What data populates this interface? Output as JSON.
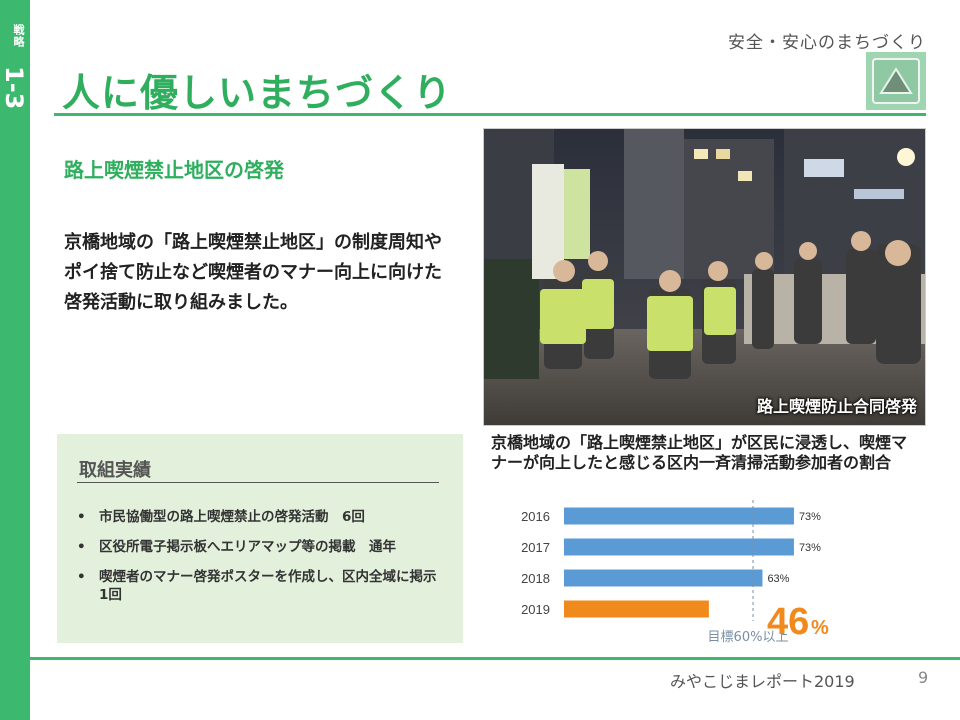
{
  "sidebar": {
    "category": "戦略",
    "number": "1-3"
  },
  "header": {
    "topic": "安全・安心のまちづくり",
    "title": "人に優しいまちづくり"
  },
  "section": {
    "subtitle": "路上喫煙禁止地区の啓発",
    "body": "京橋地域の「路上喫煙禁止地区」の制度周知やポイ捨て防止など喫煙者のマナー向上に向けた啓発活動に取り組みました。"
  },
  "photo": {
    "caption": "路上喫煙防止合同啓発"
  },
  "results": {
    "heading": "取組実績",
    "items": [
      "市民協働型の路上喫煙禁止の啓発活動　6回",
      "区役所電子掲示板へエリアマップ等の掲載　通年",
      "喫煙者のマナー啓発ポスターを作成し、区内全域に掲示　1回"
    ]
  },
  "chart_data": {
    "type": "bar",
    "orientation": "horizontal",
    "title": "京橋地域の「路上喫煙禁止地区」が区民に浸透し、喫煙マナーが向上したと感じる区内一斉清掃活動参加者の割合",
    "categories": [
      "2016",
      "2017",
      "2018",
      "2019"
    ],
    "values": [
      73,
      73,
      63,
      46
    ],
    "value_labels": [
      "73%",
      "73%",
      "63%",
      ""
    ],
    "highlight": {
      "value": "46",
      "unit": "%"
    },
    "target": {
      "value": 60,
      "label": "目標60%以上"
    },
    "xlim": [
      0,
      100
    ],
    "colors": {
      "normal": "#5b9bd5",
      "highlight": "#f08a1c",
      "target_line": "#7a8fa6",
      "highlight_text": "#f08a1c"
    }
  },
  "footer": {
    "report": "みやこじまレポート2019",
    "page": "9"
  },
  "colors": {
    "accent": "#3cb96e",
    "title": "#2fae5e",
    "results_bg": "#e3f1dc"
  }
}
